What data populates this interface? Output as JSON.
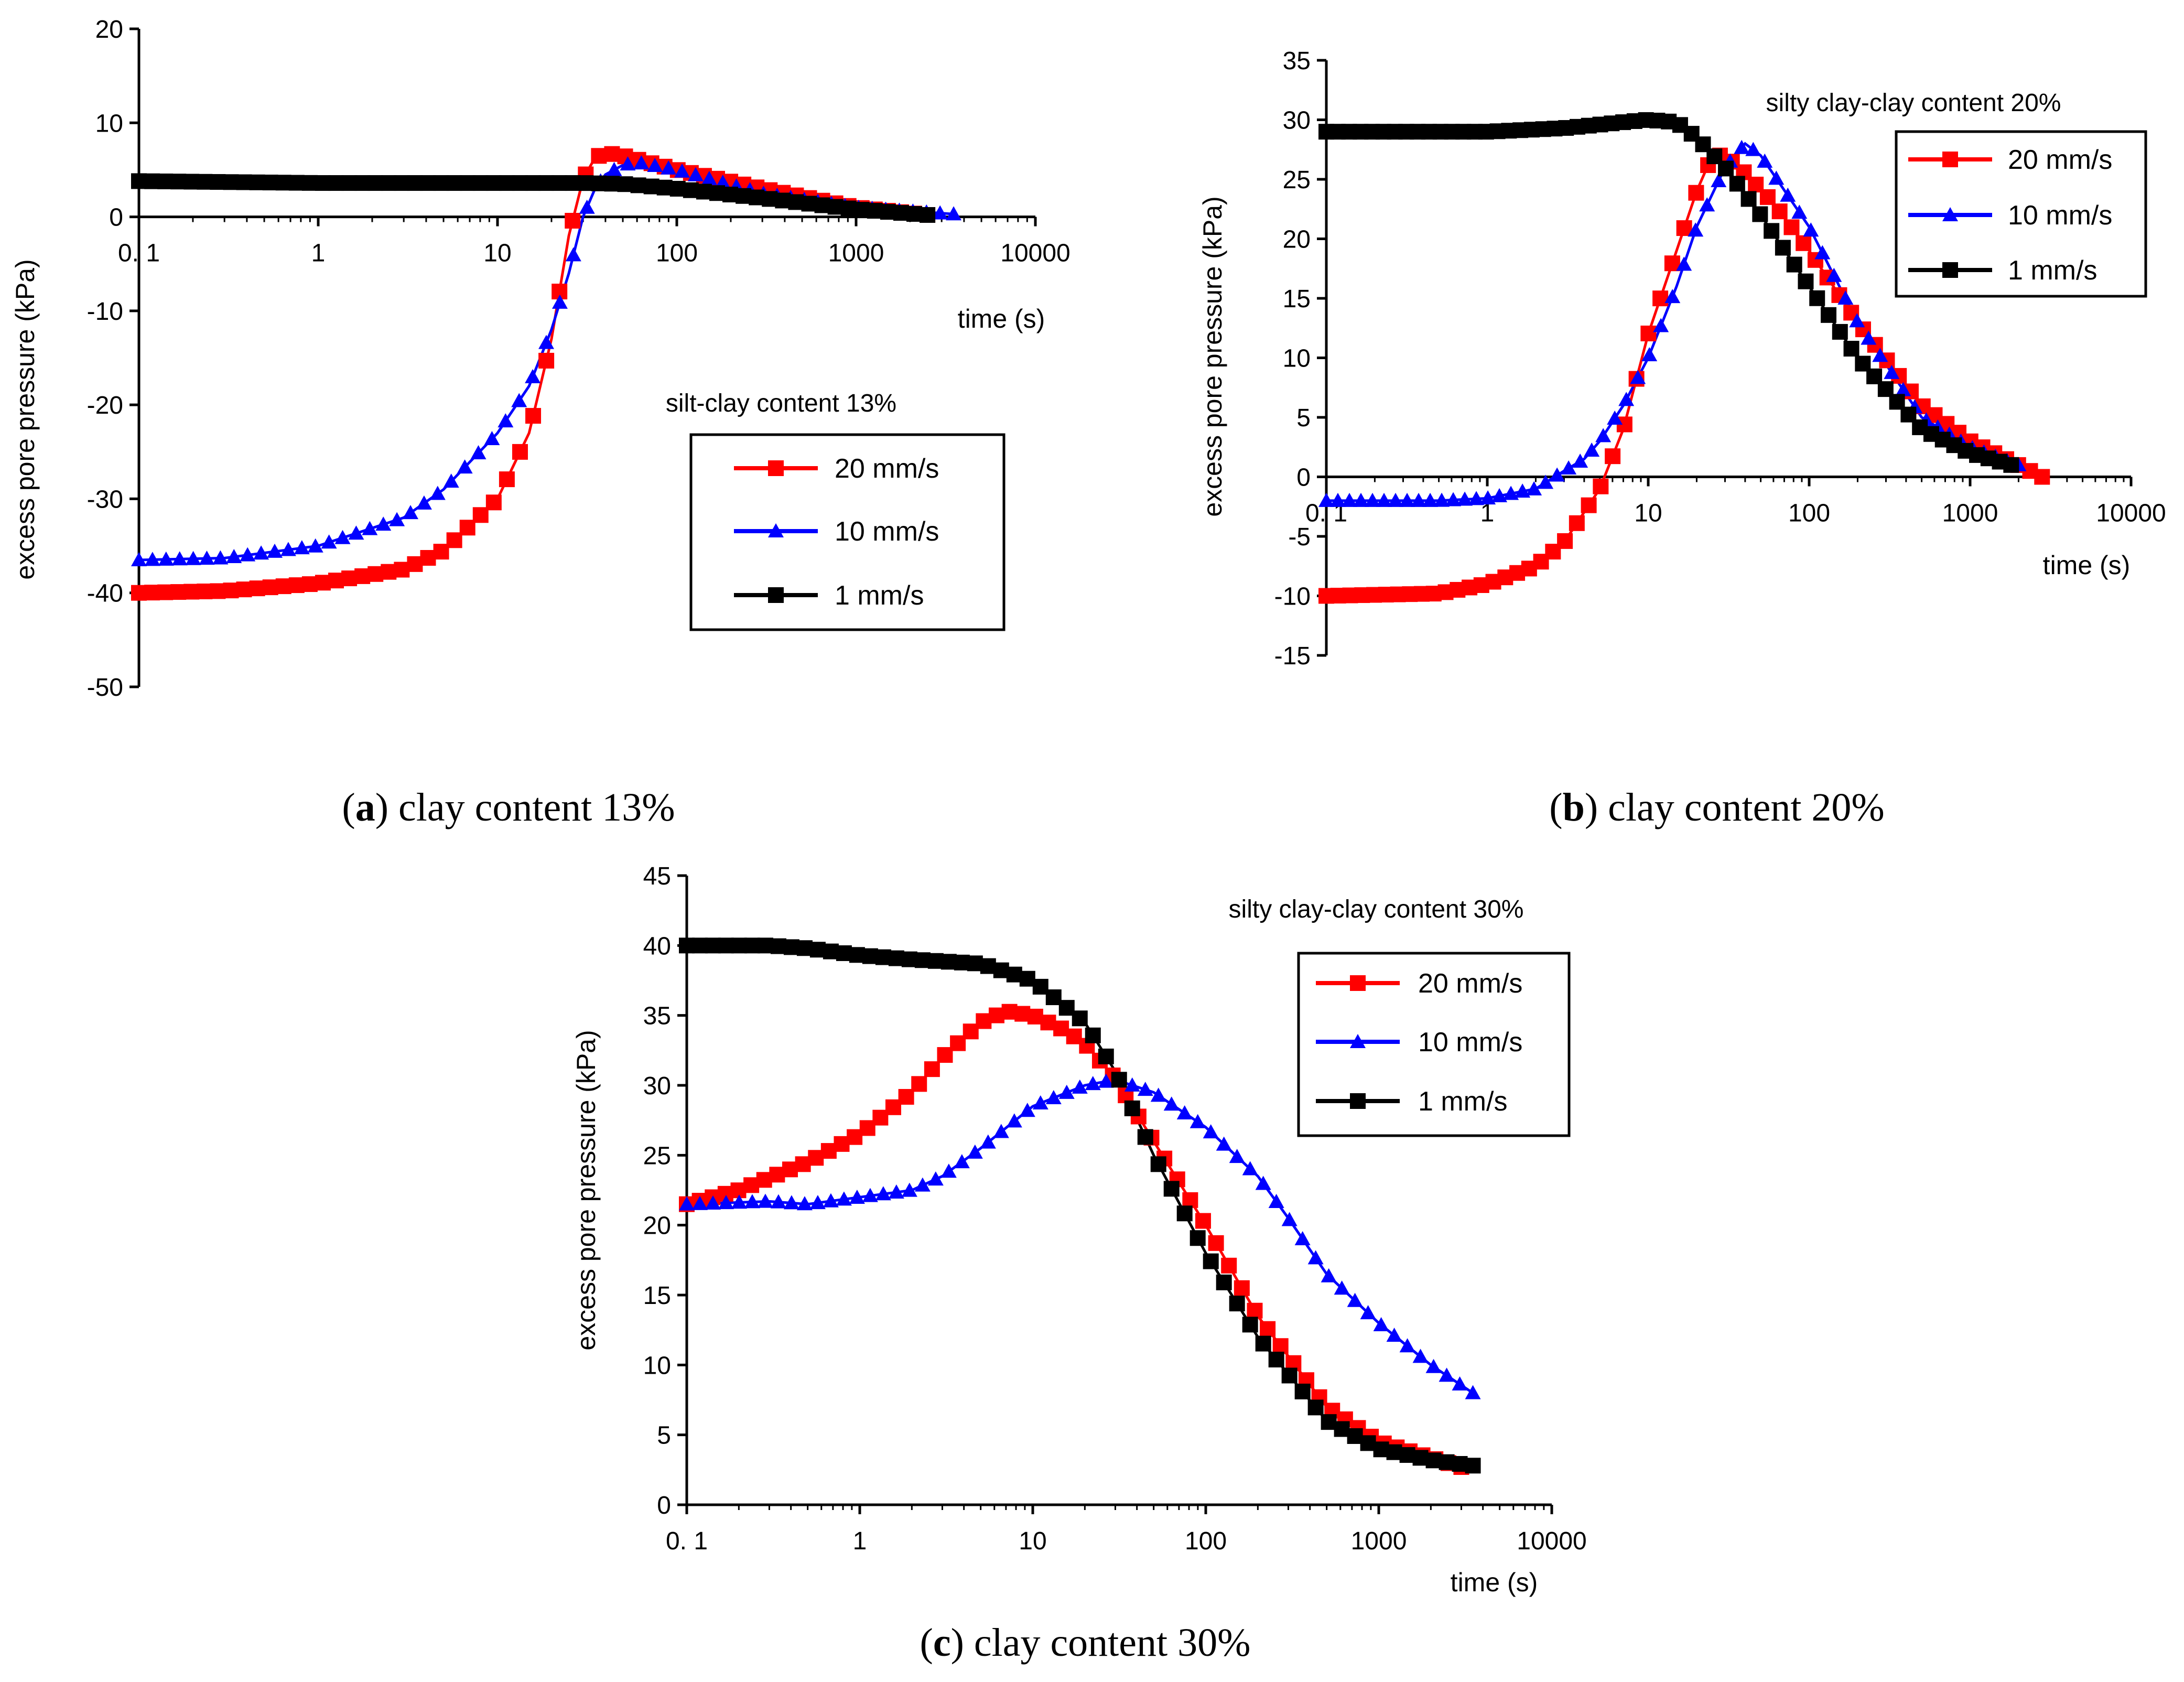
{
  "series_styles": [
    {
      "name": "20 mm/s",
      "color": "#ff0000",
      "marker": "square"
    },
    {
      "name": "10 mm/s",
      "color": "#0000ff",
      "marker": "triangle"
    },
    {
      "name": "1 mm/s",
      "color": "#000000",
      "marker": "square"
    }
  ],
  "chart_data": [
    {
      "type": "line",
      "caption": {
        "open": "(",
        "letter": "a",
        "rest": ") clay content 13%"
      },
      "note": "silt-clay content 13%",
      "xlabel": "time (s)",
      "ylabel": "excess pore pressure (kPa)",
      "xscale": "log",
      "xlim": [
        0.1,
        10000
      ],
      "ylim": [
        -50,
        20
      ],
      "x_ticks": [
        "0. 1",
        "1",
        "10",
        "100",
        "1000",
        "10000"
      ],
      "y_ticks": [
        "-50",
        "-40",
        "-30",
        "-20",
        "-10",
        "0",
        "10",
        "20"
      ],
      "series": [
        {
          "name": "20 mm/s",
          "x": [
            0.1,
            0.3,
            1,
            3,
            5,
            10,
            15,
            20,
            25,
            30,
            35,
            40,
            50,
            100,
            300,
            1000,
            2500
          ],
          "y": [
            -40,
            -39.8,
            -39,
            -37.5,
            -35.5,
            -30,
            -23,
            -13,
            -2,
            4,
            6.3,
            6.8,
            6.5,
            5,
            3,
            1,
            0.2
          ]
        },
        {
          "name": "10 mm/s",
          "x": [
            0.1,
            0.3,
            1,
            3,
            5,
            10,
            15,
            20,
            25,
            30,
            35,
            40,
            50,
            60,
            100,
            300,
            1000,
            3500
          ],
          "y": [
            -36.5,
            -36.3,
            -35,
            -32,
            -29,
            -23,
            -18,
            -12,
            -6,
            0,
            3,
            4.5,
            5.5,
            5.8,
            5,
            2.5,
            1,
            0.3
          ]
        },
        {
          "name": "1 mm/s",
          "x": [
            0.1,
            1,
            10,
            30,
            50,
            100,
            300,
            1000,
            2500
          ],
          "y": [
            3.8,
            3.6,
            3.6,
            3.6,
            3.5,
            3,
            2,
            0.8,
            0.2
          ]
        }
      ]
    },
    {
      "type": "line",
      "caption": {
        "open": "(",
        "letter": "b",
        "rest": ") clay content 20%"
      },
      "note": "silty clay-clay content 20%",
      "xlabel": "time (s)",
      "ylabel": "excess pore pressure (kPa)",
      "xscale": "log",
      "xlim": [
        0.1,
        10000
      ],
      "ylim": [
        -15,
        35
      ],
      "x_ticks": [
        "0. 1",
        "1",
        "10",
        "100",
        "1000",
        "10000"
      ],
      "y_ticks": [
        "-15",
        "-10",
        "-5",
        "0",
        "5",
        "10",
        "15",
        "20",
        "25",
        "30",
        "35"
      ],
      "series": [
        {
          "name": "20 mm/s",
          "x": [
            0.1,
            0.5,
            1,
            2,
            3,
            5,
            7,
            10,
            15,
            20,
            25,
            30,
            40,
            60,
            100,
            200,
            500,
            1000,
            2800
          ],
          "y": [
            -10,
            -9.8,
            -9,
            -7.5,
            -5.5,
            -1,
            4,
            12,
            19,
            24,
            27,
            27,
            25.5,
            23,
            19,
            13,
            6,
            3,
            0
          ]
        },
        {
          "name": "10 mm/s",
          "x": [
            0.1,
            0.5,
            1,
            2,
            3,
            4,
            5,
            7,
            10,
            15,
            20,
            30,
            40,
            50,
            100,
            200,
            500,
            1000,
            2000
          ],
          "y": [
            -2,
            -2,
            -1.8,
            -1,
            0.5,
            1.5,
            3,
            6,
            10,
            16,
            21,
            26,
            28,
            27,
            21,
            13,
            5,
            2.5,
            1
          ]
        },
        {
          "name": "1 mm/s",
          "x": [
            0.1,
            1,
            3,
            5,
            7,
            10,
            15,
            20,
            30,
            50,
            100,
            200,
            500,
            1000,
            1800
          ],
          "y": [
            29,
            29,
            29.3,
            29.6,
            29.8,
            30,
            29.8,
            28.5,
            26,
            22,
            16,
            10,
            4,
            2,
            1
          ]
        }
      ]
    },
    {
      "type": "line",
      "caption": {
        "open": "(",
        "letter": "c",
        "rest": ") clay content 30%"
      },
      "note": "silty clay-clay content 30%",
      "xlabel": "time (s)",
      "ylabel": "excess pore pressure (kPa)",
      "xscale": "log",
      "xlim": [
        0.1,
        10000
      ],
      "ylim": [
        0,
        45
      ],
      "x_ticks": [
        "0. 1",
        "1",
        "10",
        "100",
        "1000",
        "10000"
      ],
      "y_ticks": [
        "0",
        "5",
        "10",
        "15",
        "20",
        "25",
        "30",
        "35",
        "40",
        "45"
      ],
      "series": [
        {
          "name": "20 mm/s",
          "x": [
            0.1,
            0.2,
            0.5,
            1,
            2,
            3,
            5,
            7,
            10,
            15,
            20,
            30,
            50,
            100,
            200,
            500,
            1000,
            3000
          ],
          "y": [
            21.5,
            22.5,
            24.5,
            26.5,
            29.5,
            32,
            34.5,
            35.3,
            35,
            34,
            33,
            30.5,
            26,
            20,
            13.5,
            7,
            4.5,
            2.7
          ]
        },
        {
          "name": "10 mm/s",
          "x": [
            0.1,
            0.3,
            0.5,
            1,
            2,
            3,
            5,
            10,
            20,
            30,
            50,
            100,
            200,
            300,
            500,
            1000,
            2000,
            3500
          ],
          "y": [
            21.5,
            21.7,
            21.5,
            22,
            22.5,
            23.5,
            25.5,
            28.5,
            30,
            30.4,
            29.5,
            27,
            23.5,
            20.5,
            16.5,
            13,
            10,
            8
          ]
        },
        {
          "name": "1 mm/s",
          "x": [
            0.1,
            0.3,
            0.5,
            1,
            2,
            5,
            10,
            20,
            30,
            50,
            100,
            200,
            500,
            1000,
            2000,
            3500
          ],
          "y": [
            40,
            40,
            39.8,
            39.3,
            39,
            38.7,
            37.5,
            34.5,
            31,
            25,
            18,
            12,
            6,
            4,
            3.2,
            2.8
          ]
        }
      ]
    }
  ]
}
